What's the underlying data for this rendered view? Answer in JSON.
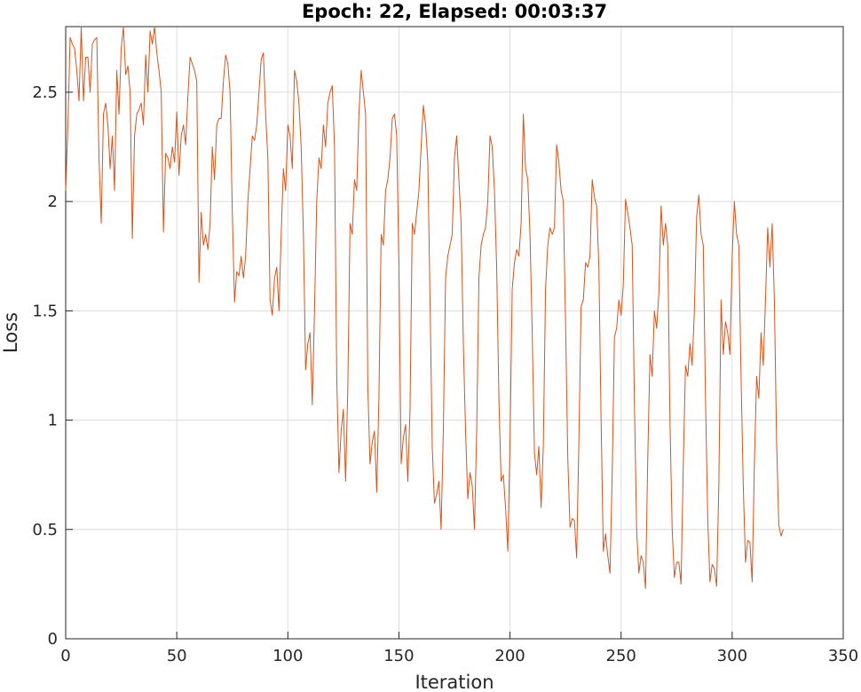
{
  "chart_data": {
    "type": "line",
    "title": "Epoch: 22, Elapsed: 00:03:37",
    "xlabel": "Iteration",
    "ylabel": "Loss",
    "xlim": [
      0,
      350
    ],
    "ylim": [
      0,
      2.8
    ],
    "xticks": [
      0,
      50,
      100,
      150,
      200,
      250,
      300,
      350
    ],
    "yticks": [
      0,
      0.5,
      1,
      1.5,
      2,
      2.5
    ],
    "ytick_labels": [
      "0",
      "0.5",
      "1",
      "1.5",
      "2",
      "2.5"
    ],
    "grid": true,
    "series": [
      {
        "color": "#d95319",
        "points": [
          [
            0,
            2.05
          ],
          [
            1,
            2.35
          ],
          [
            2,
            2.75
          ],
          [
            3,
            2.72
          ],
          [
            4,
            2.7
          ],
          [
            5,
            2.6
          ],
          [
            6,
            2.46
          ],
          [
            7,
            2.8
          ],
          [
            8,
            2.46
          ],
          [
            9,
            2.66
          ],
          [
            10,
            2.66
          ],
          [
            11,
            2.5
          ],
          [
            12,
            2.72
          ],
          [
            13,
            2.74
          ],
          [
            14,
            2.75
          ],
          [
            15,
            2.2
          ],
          [
            16,
            1.9
          ],
          [
            17,
            2.4
          ],
          [
            18,
            2.45
          ],
          [
            19,
            2.35
          ],
          [
            20,
            2.15
          ],
          [
            21,
            2.3
          ],
          [
            22,
            2.05
          ],
          [
            23,
            2.6
          ],
          [
            24,
            2.4
          ],
          [
            25,
            2.7
          ],
          [
            26,
            2.8
          ],
          [
            27,
            2.58
          ],
          [
            28,
            2.62
          ],
          [
            29,
            2.5
          ],
          [
            30,
            1.83
          ],
          [
            31,
            2.3
          ],
          [
            32,
            2.4
          ],
          [
            33,
            2.42
          ],
          [
            34,
            2.45
          ],
          [
            35,
            2.35
          ],
          [
            36,
            2.67
          ],
          [
            37,
            2.5
          ],
          [
            38,
            2.78
          ],
          [
            39,
            2.72
          ],
          [
            40,
            2.8
          ],
          [
            41,
            2.68
          ],
          [
            42,
            2.6
          ],
          [
            43,
            2.5
          ],
          [
            44,
            1.86
          ],
          [
            45,
            2.22
          ],
          [
            46,
            2.2
          ],
          [
            47,
            2.15
          ],
          [
            48,
            2.25
          ],
          [
            49,
            2.18
          ],
          [
            50,
            2.41
          ],
          [
            51,
            2.12
          ],
          [
            52,
            2.3
          ],
          [
            53,
            2.35
          ],
          [
            54,
            2.26
          ],
          [
            55,
            2.48
          ],
          [
            56,
            2.66
          ],
          [
            57,
            2.63
          ],
          [
            58,
            2.6
          ],
          [
            59,
            2.55
          ],
          [
            60,
            1.63
          ],
          [
            61,
            1.95
          ],
          [
            62,
            1.8
          ],
          [
            63,
            1.85
          ],
          [
            64,
            1.78
          ],
          [
            65,
            1.9
          ],
          [
            66,
            2.25
          ],
          [
            67,
            2.1
          ],
          [
            68,
            2.35
          ],
          [
            69,
            2.38
          ],
          [
            70,
            2.38
          ],
          [
            71,
            2.55
          ],
          [
            72,
            2.67
          ],
          [
            73,
            2.63
          ],
          [
            74,
            2.5
          ],
          [
            75,
            1.95
          ],
          [
            76,
            1.54
          ],
          [
            77,
            1.68
          ],
          [
            78,
            1.66
          ],
          [
            79,
            1.75
          ],
          [
            80,
            1.65
          ],
          [
            81,
            1.75
          ],
          [
            82,
            2.0
          ],
          [
            83,
            2.15
          ],
          [
            84,
            2.3
          ],
          [
            85,
            2.28
          ],
          [
            86,
            2.35
          ],
          [
            87,
            2.5
          ],
          [
            88,
            2.65
          ],
          [
            89,
            2.68
          ],
          [
            90,
            2.4
          ],
          [
            91,
            2.2
          ],
          [
            92,
            1.55
          ],
          [
            93,
            1.48
          ],
          [
            94,
            1.65
          ],
          [
            95,
            1.7
          ],
          [
            96,
            1.5
          ],
          [
            97,
            1.85
          ],
          [
            98,
            2.15
          ],
          [
            99,
            2.05
          ],
          [
            100,
            2.35
          ],
          [
            101,
            2.3
          ],
          [
            102,
            2.15
          ],
          [
            103,
            2.6
          ],
          [
            104,
            2.55
          ],
          [
            105,
            2.45
          ],
          [
            106,
            2.25
          ],
          [
            107,
            1.85
          ],
          [
            108,
            1.23
          ],
          [
            109,
            1.35
          ],
          [
            110,
            1.4
          ],
          [
            111,
            1.07
          ],
          [
            112,
            1.5
          ],
          [
            113,
            2.0
          ],
          [
            114,
            2.2
          ],
          [
            115,
            2.15
          ],
          [
            116,
            2.35
          ],
          [
            117,
            2.25
          ],
          [
            118,
            2.45
          ],
          [
            119,
            2.5
          ],
          [
            120,
            2.53
          ],
          [
            121,
            2.25
          ],
          [
            122,
            1.2
          ],
          [
            123,
            0.76
          ],
          [
            124,
            0.95
          ],
          [
            125,
            1.05
          ],
          [
            126,
            0.72
          ],
          [
            127,
            1.15
          ],
          [
            128,
            1.9
          ],
          [
            129,
            1.85
          ],
          [
            130,
            2.1
          ],
          [
            131,
            2.05
          ],
          [
            132,
            2.4
          ],
          [
            133,
            2.6
          ],
          [
            134,
            2.5
          ],
          [
            135,
            2.4
          ],
          [
            136,
            1.15
          ],
          [
            137,
            0.8
          ],
          [
            138,
            0.9
          ],
          [
            139,
            0.95
          ],
          [
            140,
            0.67
          ],
          [
            141,
            1.1
          ],
          [
            142,
            1.85
          ],
          [
            143,
            1.8
          ],
          [
            144,
            2.05
          ],
          [
            145,
            2.1
          ],
          [
            146,
            2.2
          ],
          [
            147,
            2.38
          ],
          [
            148,
            2.4
          ],
          [
            149,
            2.3
          ],
          [
            150,
            1.7
          ],
          [
            151,
            0.8
          ],
          [
            152,
            0.92
          ],
          [
            153,
            0.98
          ],
          [
            154,
            0.72
          ],
          [
            155,
            1.05
          ],
          [
            156,
            1.9
          ],
          [
            157,
            1.85
          ],
          [
            158,
            1.95
          ],
          [
            159,
            2.05
          ],
          [
            160,
            2.25
          ],
          [
            161,
            2.44
          ],
          [
            162,
            2.35
          ],
          [
            163,
            2.18
          ],
          [
            164,
            1.55
          ],
          [
            165,
            0.88
          ],
          [
            166,
            0.62
          ],
          [
            167,
            0.66
          ],
          [
            168,
            0.72
          ],
          [
            169,
            0.5
          ],
          [
            170,
            0.96
          ],
          [
            171,
            1.65
          ],
          [
            172,
            1.75
          ],
          [
            173,
            1.8
          ],
          [
            174,
            1.85
          ],
          [
            175,
            2.2
          ],
          [
            176,
            2.3
          ],
          [
            177,
            2.1
          ],
          [
            178,
            1.9
          ],
          [
            179,
            1.35
          ],
          [
            180,
            0.95
          ],
          [
            181,
            0.64
          ],
          [
            182,
            0.76
          ],
          [
            183,
            0.7
          ],
          [
            184,
            0.5
          ],
          [
            185,
            0.95
          ],
          [
            186,
            1.65
          ],
          [
            187,
            1.8
          ],
          [
            188,
            1.85
          ],
          [
            189,
            1.88
          ],
          [
            190,
            2.0
          ],
          [
            191,
            2.3
          ],
          [
            192,
            2.25
          ],
          [
            193,
            2.05
          ],
          [
            194,
            1.7
          ],
          [
            195,
            1.1
          ],
          [
            196,
            0.72
          ],
          [
            197,
            0.75
          ],
          [
            198,
            0.6
          ],
          [
            199,
            0.4
          ],
          [
            200,
            0.9
          ],
          [
            201,
            1.6
          ],
          [
            202,
            1.72
          ],
          [
            203,
            1.78
          ],
          [
            204,
            1.75
          ],
          [
            205,
            1.9
          ],
          [
            206,
            2.4
          ],
          [
            207,
            2.15
          ],
          [
            208,
            2.1
          ],
          [
            209,
            1.85
          ],
          [
            210,
            1.4
          ],
          [
            211,
            0.85
          ],
          [
            212,
            0.75
          ],
          [
            213,
            0.88
          ],
          [
            214,
            0.6
          ],
          [
            215,
            0.88
          ],
          [
            216,
            1.6
          ],
          [
            217,
            1.8
          ],
          [
            218,
            1.88
          ],
          [
            219,
            1.85
          ],
          [
            220,
            1.88
          ],
          [
            221,
            2.26
          ],
          [
            222,
            2.18
          ],
          [
            223,
            2.05
          ],
          [
            224,
            2.0
          ],
          [
            225,
            1.45
          ],
          [
            226,
            0.83
          ],
          [
            227,
            0.51
          ],
          [
            228,
            0.55
          ],
          [
            229,
            0.54
          ],
          [
            230,
            0.37
          ],
          [
            231,
            0.9
          ],
          [
            232,
            1.52
          ],
          [
            233,
            1.55
          ],
          [
            234,
            1.72
          ],
          [
            235,
            1.7
          ],
          [
            236,
            1.75
          ],
          [
            237,
            2.1
          ],
          [
            238,
            2.02
          ],
          [
            239,
            1.98
          ],
          [
            240,
            1.7
          ],
          [
            241,
            1.0
          ],
          [
            242,
            0.4
          ],
          [
            243,
            0.48
          ],
          [
            244,
            0.38
          ],
          [
            245,
            0.3
          ],
          [
            246,
            0.75
          ],
          [
            247,
            1.38
          ],
          [
            248,
            1.42
          ],
          [
            249,
            1.55
          ],
          [
            250,
            1.48
          ],
          [
            251,
            1.62
          ],
          [
            252,
            2.01
          ],
          [
            253,
            1.95
          ],
          [
            254,
            1.88
          ],
          [
            255,
            1.8
          ],
          [
            256,
            1.08
          ],
          [
            257,
            0.5
          ],
          [
            258,
            0.3
          ],
          [
            259,
            0.38
          ],
          [
            260,
            0.35
          ],
          [
            261,
            0.23
          ],
          [
            262,
            0.82
          ],
          [
            263,
            1.3
          ],
          [
            264,
            1.2
          ],
          [
            265,
            1.5
          ],
          [
            266,
            1.42
          ],
          [
            267,
            1.58
          ],
          [
            268,
            1.98
          ],
          [
            269,
            1.8
          ],
          [
            270,
            1.9
          ],
          [
            271,
            1.8
          ],
          [
            272,
            1.0
          ],
          [
            273,
            0.5
          ],
          [
            274,
            0.28
          ],
          [
            275,
            0.35
          ],
          [
            276,
            0.35
          ],
          [
            277,
            0.25
          ],
          [
            278,
            0.8
          ],
          [
            279,
            1.25
          ],
          [
            280,
            1.2
          ],
          [
            281,
            1.35
          ],
          [
            282,
            1.25
          ],
          [
            283,
            1.5
          ],
          [
            284,
            1.93
          ],
          [
            285,
            2.03
          ],
          [
            286,
            1.85
          ],
          [
            287,
            1.8
          ],
          [
            288,
            1.1
          ],
          [
            289,
            0.55
          ],
          [
            290,
            0.26
          ],
          [
            291,
            0.34
          ],
          [
            292,
            0.32
          ],
          [
            293,
            0.24
          ],
          [
            294,
            0.7
          ],
          [
            295,
            1.55
          ],
          [
            296,
            1.3
          ],
          [
            297,
            1.45
          ],
          [
            298,
            1.4
          ],
          [
            299,
            1.3
          ],
          [
            300,
            1.75
          ],
          [
            301,
            2.0
          ],
          [
            302,
            1.85
          ],
          [
            303,
            1.8
          ],
          [
            304,
            1.2
          ],
          [
            305,
            0.7
          ],
          [
            306,
            0.35
          ],
          [
            307,
            0.45
          ],
          [
            308,
            0.44
          ],
          [
            309,
            0.26
          ],
          [
            310,
            0.8
          ],
          [
            311,
            1.2
          ],
          [
            312,
            1.1
          ],
          [
            313,
            1.4
          ],
          [
            314,
            1.25
          ],
          [
            315,
            1.55
          ],
          [
            316,
            1.88
          ],
          [
            317,
            1.7
          ],
          [
            318,
            1.9
          ],
          [
            319,
            1.55
          ],
          [
            320,
            0.9
          ],
          [
            321,
            0.52
          ],
          [
            322,
            0.47
          ],
          [
            323,
            0.5
          ]
        ]
      }
    ]
  }
}
